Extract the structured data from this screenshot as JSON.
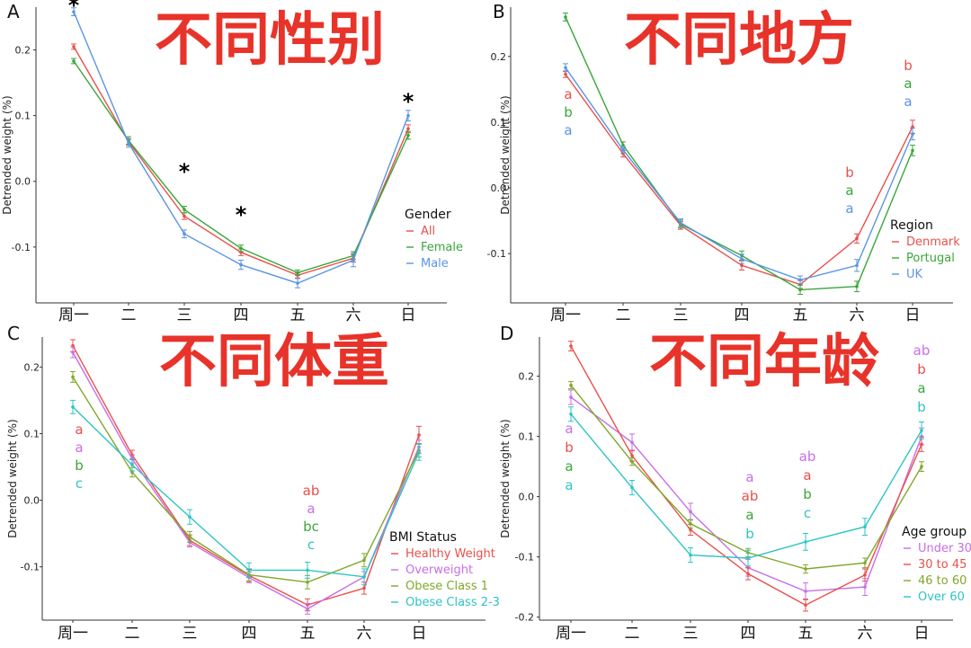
{
  "colors": {
    "red": "#e8504a",
    "green": "#3aa63a",
    "blue": "#5b95e3",
    "olive": "#7fa82a",
    "purple": "#c86ee8",
    "cyan": "#2ec4c4",
    "banner": "#e8332a"
  },
  "chart_data": [
    {
      "type": "line",
      "panel": "A",
      "banner": "不同性别",
      "categories": [
        "周一",
        "二",
        "三",
        "四",
        "五",
        "六",
        "日"
      ],
      "ylabel": "Detrended weight (%)",
      "ylim": [
        -0.185,
        0.265
      ],
      "yticks": [
        0.2,
        0.1,
        0.0,
        -0.1
      ],
      "ytick_labels": [
        "0.2",
        "0.1",
        "0.0",
        "-0.1"
      ],
      "legend_title": "Gender",
      "series": [
        {
          "name": "All",
          "color": "#e8504a",
          "values": [
            0.205,
            0.06,
            -0.053,
            -0.108,
            -0.143,
            -0.117,
            0.08
          ],
          "err": [
            0.004,
            0.005,
            0.005,
            0.005,
            0.004,
            0.006,
            0.006
          ]
        },
        {
          "name": "Female",
          "color": "#3aa63a",
          "values": [
            0.183,
            0.062,
            -0.043,
            -0.102,
            -0.139,
            -0.113,
            0.07
          ],
          "err": [
            0.004,
            0.006,
            0.005,
            0.005,
            0.004,
            0.006,
            0.006
          ]
        },
        {
          "name": "Male",
          "color": "#5b95e3",
          "values": [
            0.258,
            0.058,
            -0.08,
            -0.127,
            -0.155,
            -0.12,
            0.1
          ],
          "err": [
            0.006,
            0.006,
            0.006,
            0.007,
            0.007,
            0.01,
            0.008
          ]
        }
      ],
      "annotations": [
        {
          "cat": 0,
          "lines": [
            {
              "text": "*",
              "color": "#000000"
            }
          ]
        },
        {
          "cat": 2,
          "lines": [
            {
              "text": "*",
              "color": "#000000"
            }
          ]
        },
        {
          "cat": 3,
          "lines": [
            {
              "text": "*",
              "color": "#000000"
            }
          ]
        },
        {
          "cat": 6,
          "lines": [
            {
              "text": "*",
              "color": "#000000"
            }
          ]
        }
      ]
    },
    {
      "type": "line",
      "panel": "B",
      "banner": "不同地方",
      "categories": [
        "周一",
        "二",
        "三",
        "四",
        "五",
        "六",
        "日"
      ],
      "ylabel": "Detrended weight (%)",
      "ylim": [
        -0.175,
        0.275
      ],
      "yticks": [
        0.2,
        0.1,
        0.0,
        -0.1
      ],
      "ytick_labels": [
        "0.2",
        "0.1",
        "0.0",
        "-0.1"
      ],
      "legend_title": "Region",
      "series": [
        {
          "name": "Denmark",
          "color": "#e8504a",
          "values": [
            0.173,
            0.052,
            -0.057,
            -0.118,
            -0.147,
            -0.077,
            0.093
          ],
          "err": [
            0.005,
            0.005,
            0.006,
            0.007,
            0.006,
            0.007,
            0.01
          ]
        },
        {
          "name": "Portugal",
          "color": "#3aa63a",
          "values": [
            0.26,
            0.065,
            -0.055,
            -0.103,
            -0.155,
            -0.15,
            0.057
          ],
          "err": [
            0.006,
            0.005,
            0.006,
            0.007,
            0.007,
            0.008,
            0.008
          ]
        },
        {
          "name": "UK",
          "color": "#5b95e3",
          "values": [
            0.183,
            0.058,
            -0.053,
            -0.108,
            -0.14,
            -0.118,
            0.082
          ],
          "err": [
            0.006,
            0.005,
            0.006,
            0.007,
            0.006,
            0.009,
            0.009
          ]
        }
      ],
      "annotations": [
        {
          "cat": 0,
          "lines": [
            {
              "text": "a",
              "color": "#e8504a"
            },
            {
              "text": "b",
              "color": "#3aa63a"
            },
            {
              "text": "a",
              "color": "#5b95e3"
            }
          ]
        },
        {
          "cat": 5,
          "lines": [
            {
              "text": "b",
              "color": "#e8504a"
            },
            {
              "text": "a",
              "color": "#3aa63a"
            },
            {
              "text": "a",
              "color": "#5b95e3"
            }
          ]
        },
        {
          "cat": 6,
          "lines": [
            {
              "text": "b",
              "color": "#e8504a"
            },
            {
              "text": "a",
              "color": "#3aa63a"
            },
            {
              "text": "a",
              "color": "#5b95e3"
            }
          ]
        }
      ]
    },
    {
      "type": "line",
      "panel": "C",
      "banner": "不同体重",
      "categories": [
        "周一",
        "二",
        "三",
        "四",
        "五",
        "六",
        "日"
      ],
      "ylabel": "Detrended weight (%)",
      "ylim": [
        -0.18,
        0.245
      ],
      "yticks": [
        0.2,
        0.1,
        0.0,
        -0.1
      ],
      "ytick_labels": [
        "0.2",
        "0.1",
        "0.0",
        "-0.1"
      ],
      "legend_title": "BMI Status",
      "series": [
        {
          "name": "Healthy Weight",
          "color": "#e8504a",
          "values": [
            0.232,
            0.068,
            -0.06,
            -0.113,
            -0.157,
            -0.132,
            0.098
          ],
          "err": [
            0.009,
            0.007,
            0.008,
            0.009,
            0.009,
            0.009,
            0.013
          ]
        },
        {
          "name": "Overweight",
          "color": "#c86ee8",
          "values": [
            0.222,
            0.062,
            -0.063,
            -0.116,
            -0.163,
            -0.115,
            0.08
          ],
          "err": [
            0.008,
            0.006,
            0.007,
            0.008,
            0.008,
            0.008,
            0.01
          ]
        },
        {
          "name": "Obese Class 1",
          "color": "#7fa82a",
          "values": [
            0.185,
            0.042,
            -0.055,
            -0.112,
            -0.123,
            -0.09,
            0.075
          ],
          "err": [
            0.008,
            0.007,
            0.008,
            0.009,
            0.01,
            0.01,
            0.01
          ]
        },
        {
          "name": "Obese Class 2-3",
          "color": "#2ec4c4",
          "values": [
            0.14,
            0.053,
            -0.025,
            -0.105,
            -0.105,
            -0.115,
            0.072
          ],
          "err": [
            0.01,
            0.009,
            0.011,
            0.011,
            0.012,
            0.012,
            0.012
          ]
        }
      ],
      "annotations": [
        {
          "cat": 0,
          "lines": [
            {
              "text": "a",
              "color": "#e8504a"
            },
            {
              "text": "a",
              "color": "#c86ee8"
            },
            {
              "text": "b",
              "color": "#3aa63a"
            },
            {
              "text": "c",
              "color": "#2ec4c4"
            }
          ]
        },
        {
          "cat": 4,
          "lines": [
            {
              "text": "ab",
              "color": "#e8504a"
            },
            {
              "text": "a",
              "color": "#c86ee8"
            },
            {
              "text": "bc",
              "color": "#3aa63a"
            },
            {
              "text": "c",
              "color": "#2ec4c4"
            }
          ]
        }
      ]
    },
    {
      "type": "line",
      "panel": "D",
      "banner": "不同年龄",
      "categories": [
        "周一",
        "二",
        "三",
        "四",
        "五",
        "六",
        "日"
      ],
      "ylabel": "Detrended weight (%)",
      "ylim": [
        -0.205,
        0.265
      ],
      "yticks": [
        0.2,
        0.1,
        0.0,
        -0.1,
        -0.2
      ],
      "ytick_labels": [
        "0.2",
        "0.1",
        "0.0",
        "-0.1",
        "-0.2"
      ],
      "legend_title": "Age group",
      "series": [
        {
          "name": "Under 30",
          "color": "#c86ee8",
          "values": [
            0.165,
            0.09,
            -0.025,
            -0.118,
            -0.157,
            -0.15,
            0.1
          ],
          "err": [
            0.012,
            0.014,
            0.014,
            0.014,
            0.014,
            0.014,
            0.014
          ]
        },
        {
          "name": "30 to 45",
          "color": "#e8504a",
          "values": [
            0.25,
            0.068,
            -0.055,
            -0.128,
            -0.18,
            -0.13,
            0.087
          ],
          "err": [
            0.008,
            0.009,
            0.009,
            0.01,
            0.01,
            0.01,
            0.012
          ]
        },
        {
          "name": "46 to 60",
          "color": "#7fa82a",
          "values": [
            0.185,
            0.058,
            -0.045,
            -0.093,
            -0.12,
            -0.11,
            0.05
          ],
          "err": [
            0.006,
            0.006,
            0.007,
            0.007,
            0.007,
            0.008,
            0.008
          ]
        },
        {
          "name": "Over 60",
          "color": "#2ec4c4",
          "values": [
            0.137,
            0.015,
            -0.097,
            -0.102,
            -0.075,
            -0.05,
            0.11
          ],
          "err": [
            0.012,
            0.012,
            0.012,
            0.013,
            0.014,
            0.014,
            0.014
          ]
        }
      ],
      "annotations": [
        {
          "cat": 0,
          "lines": [
            {
              "text": "a",
              "color": "#c86ee8"
            },
            {
              "text": "b",
              "color": "#e8504a"
            },
            {
              "text": "a",
              "color": "#3aa63a"
            },
            {
              "text": "a",
              "color": "#2ec4c4"
            }
          ]
        },
        {
          "cat": 3,
          "lines": [
            {
              "text": "a",
              "color": "#c86ee8"
            },
            {
              "text": "ab",
              "color": "#e8504a"
            },
            {
              "text": "a",
              "color": "#3aa63a"
            },
            {
              "text": "b",
              "color": "#2ec4c4"
            }
          ]
        },
        {
          "cat": 4,
          "lines": [
            {
              "text": "ab",
              "color": "#c86ee8"
            },
            {
              "text": "a",
              "color": "#e8504a"
            },
            {
              "text": "b",
              "color": "#3aa63a"
            },
            {
              "text": "c",
              "color": "#2ec4c4"
            }
          ]
        },
        {
          "cat": 6,
          "lines": [
            {
              "text": "ab",
              "color": "#c86ee8"
            },
            {
              "text": "b",
              "color": "#e8504a"
            },
            {
              "text": "a",
              "color": "#3aa63a"
            },
            {
              "text": "b",
              "color": "#2ec4c4"
            }
          ]
        }
      ]
    }
  ]
}
